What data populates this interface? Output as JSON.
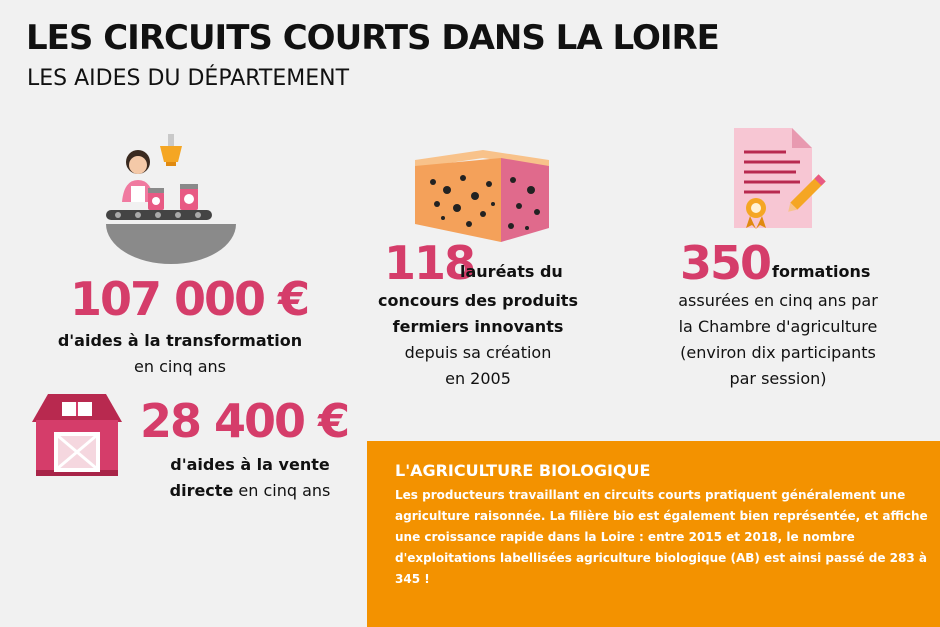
{
  "header": {
    "title": "LES CIRCUITS COURTS  DANS LA LOIRE",
    "subtitle": "LES AIDES DU DÉPARTEMENT"
  },
  "transformation": {
    "amount": "107 000 €",
    "label_bold": "d'aides à la transformation",
    "label_rest": "en cinq ans",
    "icon": "conveyor-worker-icon"
  },
  "vente": {
    "amount": "28 400 €",
    "label_bold_1": "d'aides à la vente",
    "label_bold_2": "directe",
    "label_rest": " en cinq ans",
    "icon": "barn-icon"
  },
  "laureats": {
    "number": "118",
    "line1": "lauréats du",
    "line2": "concours des produits",
    "line3": "fermiers innovants",
    "line4": "depuis sa création",
    "line5": "en 2005",
    "icon": "cheese-icon"
  },
  "formations": {
    "number": "350",
    "line1": "formations",
    "line2": "assurées en cinq ans par",
    "line3": "la Chambre d'agriculture",
    "line4": "(environ dix participants",
    "line5": "par session)",
    "icon": "certificate-icon"
  },
  "bio": {
    "title": "L'AGRICULTURE BIOLOGIQUE",
    "text": "Les producteurs travaillant en circuits courts pratiquent généralement une agriculture raisonnée. La filière bio est également bien représentée, et affiche une croissance rapide dans la Loire : entre 2015 et 2018, le nombre d'exploitations labellisées agriculture biologique (AB) est ainsi passé de 283 à 345 !"
  },
  "colors": {
    "accent": "#d53d6a",
    "orange": "#f39200",
    "background": "#f1f1f1"
  }
}
